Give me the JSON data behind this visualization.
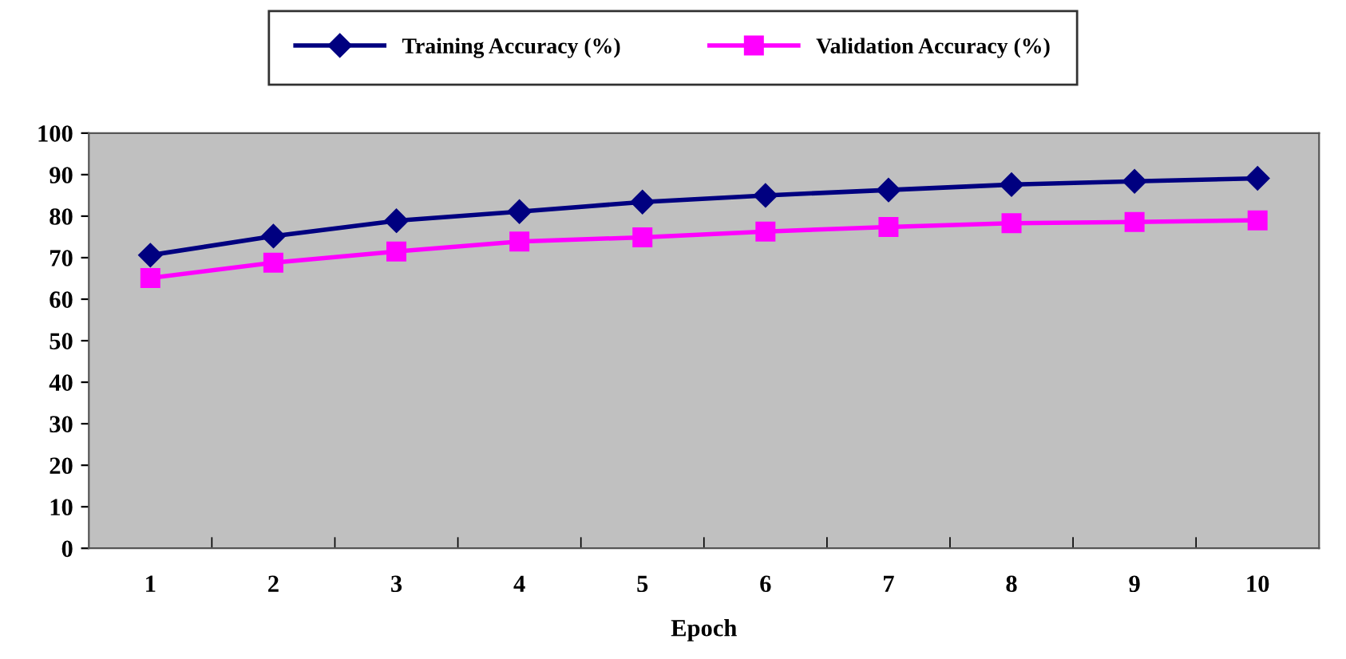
{
  "chart_data": {
    "type": "line",
    "xlabel": "Epoch",
    "categories": [
      "1",
      "2",
      "3",
      "4",
      "5",
      "6",
      "7",
      "8",
      "9",
      "10"
    ],
    "series": [
      {
        "name": "Training Accuracy (%)",
        "color": "#000080",
        "marker": "diamond",
        "values": [
          70.6,
          75.2,
          78.9,
          81.1,
          83.4,
          85.0,
          86.3,
          87.6,
          88.4,
          89.1
        ]
      },
      {
        "name": "Validation Accuracy (%)",
        "color": "#ff00ff",
        "marker": "square",
        "values": [
          65.1,
          68.8,
          71.5,
          73.9,
          74.9,
          76.3,
          77.4,
          78.3,
          78.6,
          79.0
        ]
      }
    ],
    "ylim": [
      0,
      100
    ],
    "yticks": [
      0,
      10,
      20,
      30,
      40,
      50,
      60,
      70,
      80,
      90,
      100
    ],
    "grid": false,
    "legend": "top",
    "line_style": "solid"
  }
}
